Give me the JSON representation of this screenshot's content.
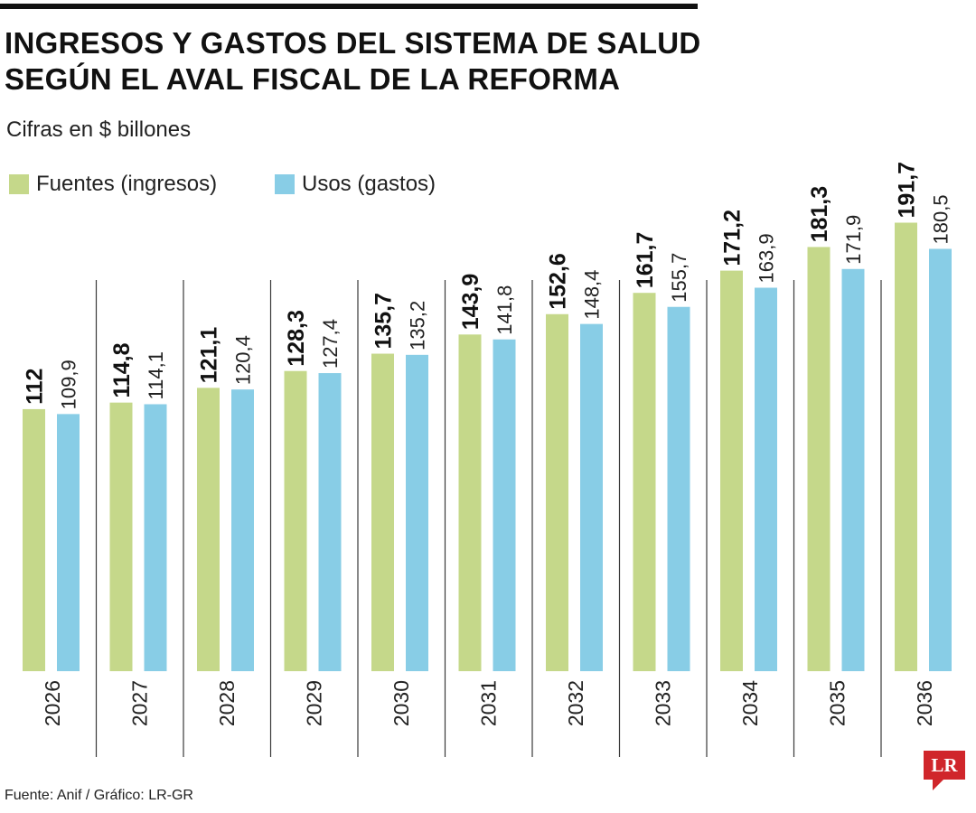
{
  "header": {
    "title_line1": "INGRESOS Y GASTOS DEL SISTEMA DE SALUD",
    "title_line2": "SEGÚN EL AVAL FISCAL DE LA REFORMA",
    "subtitle": "Cifras en $ billones"
  },
  "legend": {
    "income_label": "Fuentes (ingresos)",
    "expense_label": "Usos (gastos)"
  },
  "colors": {
    "income": "#c5d88a",
    "expense": "#88cde6",
    "divider": "#3a3a3a",
    "logo_red": "#d0262b"
  },
  "footer": {
    "source": "Fuente: Anif / Gráfico: LR-GR"
  },
  "logo": {
    "text": "LR"
  },
  "chart_data": {
    "type": "bar",
    "title": "INGRESOS Y GASTOS DEL SISTEMA DE SALUD SEGÚN EL AVAL FISCAL DE LA REFORMA",
    "subtitle": "Cifras en $ billones",
    "categories": [
      "2026",
      "2027",
      "2028",
      "2029",
      "2030",
      "2031",
      "2032",
      "2033",
      "2034",
      "2035",
      "2036"
    ],
    "series": [
      {
        "name": "Fuentes (ingresos)",
        "values": [
          112,
          114.8,
          121.1,
          128.3,
          135.7,
          143.9,
          152.6,
          161.7,
          171.2,
          181.3,
          191.7
        ],
        "labels": [
          "112",
          "114,8",
          "121,1",
          "128,3",
          "135,7",
          "143,9",
          "152,6",
          "161,7",
          "171,2",
          "181,3",
          "191,7"
        ]
      },
      {
        "name": "Usos (gastos)",
        "values": [
          109.9,
          114.1,
          120.4,
          127.4,
          135.2,
          141.8,
          148.4,
          155.7,
          163.9,
          171.9,
          180.5
        ],
        "labels": [
          "109,9",
          "114,1",
          "120,4",
          "127,4",
          "135,2",
          "141,8",
          "148,4",
          "155,7",
          "163,9",
          "171,9",
          "180,5"
        ]
      }
    ],
    "xlabel": "",
    "ylabel": "",
    "grid": false,
    "legend_position": "top-left"
  }
}
